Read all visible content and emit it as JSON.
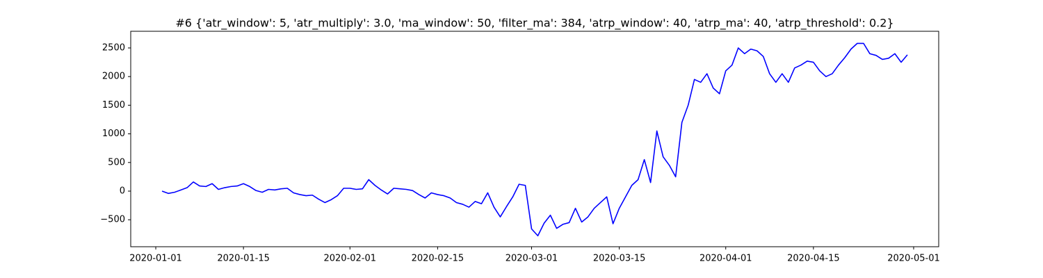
{
  "chart_data": {
    "type": "line",
    "title": "#6 {'atr_window': 5, 'atr_multiply': 3.0, 'ma_window': 50, 'filter_ma': 384, 'atrp_window': 40, 'atrp_ma': 40, 'atrp_threshold': 0.2}",
    "x": [
      "2020-01-02",
      "2020-01-03",
      "2020-01-04",
      "2020-01-05",
      "2020-01-06",
      "2020-01-07",
      "2020-01-08",
      "2020-01-09",
      "2020-01-10",
      "2020-01-11",
      "2020-01-12",
      "2020-01-13",
      "2020-01-14",
      "2020-01-15",
      "2020-01-16",
      "2020-01-17",
      "2020-01-18",
      "2020-01-19",
      "2020-01-20",
      "2020-01-21",
      "2020-01-22",
      "2020-01-23",
      "2020-01-24",
      "2020-01-25",
      "2020-01-26",
      "2020-01-27",
      "2020-01-28",
      "2020-01-29",
      "2020-01-30",
      "2020-01-31",
      "2020-02-01",
      "2020-02-02",
      "2020-02-03",
      "2020-02-04",
      "2020-02-05",
      "2020-02-06",
      "2020-02-07",
      "2020-02-08",
      "2020-02-09",
      "2020-02-10",
      "2020-02-11",
      "2020-02-12",
      "2020-02-13",
      "2020-02-14",
      "2020-02-15",
      "2020-02-16",
      "2020-02-17",
      "2020-02-18",
      "2020-02-19",
      "2020-02-20",
      "2020-02-21",
      "2020-02-22",
      "2020-02-23",
      "2020-02-24",
      "2020-02-25",
      "2020-02-26",
      "2020-02-27",
      "2020-02-28",
      "2020-02-29",
      "2020-03-01",
      "2020-03-02",
      "2020-03-03",
      "2020-03-04",
      "2020-03-05",
      "2020-03-06",
      "2020-03-07",
      "2020-03-08",
      "2020-03-09",
      "2020-03-10",
      "2020-03-11",
      "2020-03-12",
      "2020-03-13",
      "2020-03-14",
      "2020-03-15",
      "2020-03-16",
      "2020-03-17",
      "2020-03-18",
      "2020-03-19",
      "2020-03-20",
      "2020-03-21",
      "2020-03-22",
      "2020-03-23",
      "2020-03-24",
      "2020-03-25",
      "2020-03-26",
      "2020-03-27",
      "2020-03-28",
      "2020-03-29",
      "2020-03-30",
      "2020-03-31",
      "2020-04-01",
      "2020-04-02",
      "2020-04-03",
      "2020-04-04",
      "2020-04-05",
      "2020-04-06",
      "2020-04-07",
      "2020-04-08",
      "2020-04-09",
      "2020-04-10",
      "2020-04-11",
      "2020-04-12",
      "2020-04-13",
      "2020-04-14",
      "2020-04-15",
      "2020-04-16",
      "2020-04-17",
      "2020-04-18",
      "2020-04-19",
      "2020-04-20",
      "2020-04-21",
      "2020-04-22",
      "2020-04-23",
      "2020-04-24",
      "2020-04-25",
      "2020-04-26",
      "2020-04-27",
      "2020-04-28",
      "2020-04-29",
      "2020-04-30"
    ],
    "series": [
      {
        "color": "#0000ff",
        "values": [
          0,
          -40,
          -20,
          20,
          60,
          160,
          90,
          80,
          130,
          30,
          60,
          80,
          90,
          130,
          80,
          10,
          -20,
          30,
          20,
          40,
          50,
          -30,
          -60,
          -80,
          -70,
          -140,
          -200,
          -150,
          -80,
          50,
          50,
          30,
          40,
          200,
          100,
          20,
          -50,
          50,
          40,
          30,
          10,
          -60,
          -120,
          -30,
          -60,
          -80,
          -120,
          -200,
          -230,
          -280,
          -180,
          -220,
          -30,
          -280,
          -450,
          -270,
          -100,
          120,
          100,
          -660,
          -780,
          -560,
          -420,
          -650,
          -580,
          -550,
          -300,
          -540,
          -450,
          -300,
          -200,
          -100,
          -570,
          -300,
          -100,
          100,
          200,
          550,
          150,
          1050,
          600,
          450,
          250,
          1200,
          1500,
          1950,
          1900,
          2050,
          1800,
          1700,
          2100,
          2200,
          2500,
          2400,
          2480,
          2450,
          2350,
          2050,
          1900,
          2050,
          1900,
          2150,
          2200,
          2270,
          2250,
          2100,
          2000,
          2050,
          2200,
          2330,
          2480,
          2580,
          2580,
          2400,
          2370,
          2300,
          2320,
          2400,
          2250,
          2380
        ]
      }
    ],
    "xlim": [
      "2019-12-28",
      "2020-05-05"
    ],
    "xticks": [
      "2020-01-01",
      "2020-01-15",
      "2020-02-01",
      "2020-02-15",
      "2020-03-01",
      "2020-03-15",
      "2020-04-01",
      "2020-04-15",
      "2020-05-01"
    ],
    "ylim": [
      -971,
      2791
    ],
    "yticks": [
      {
        "value": -500,
        "label": "−500"
      },
      0,
      500,
      1000,
      1500,
      2000,
      2500
    ],
    "grid": false
  }
}
